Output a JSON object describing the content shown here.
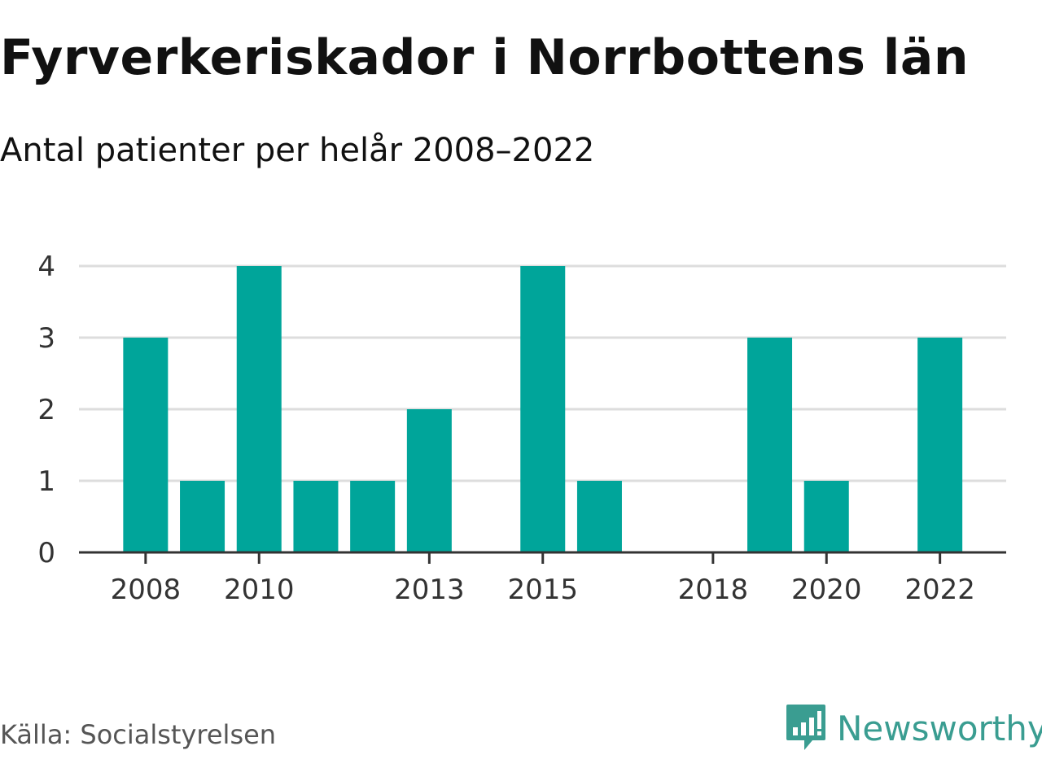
{
  "header": {
    "title": "Fyrverkeriskador i Norrbottens län",
    "subtitle": "Antal patienter per helår 2008–2022"
  },
  "footer": {
    "source": "Källa: Socialstyrelsen",
    "brand": "Newsworthy",
    "brand_icon": "bar-chart-speech-bubble-icon"
  },
  "colors": {
    "bar": "#00a59a",
    "grid": "#dddddd",
    "axis": "#333333",
    "brand": "#3a9d91"
  },
  "chart_data": {
    "type": "bar",
    "categories": [
      "2008",
      "2009",
      "2010",
      "2011",
      "2012",
      "2013",
      "2014",
      "2015",
      "2016",
      "2017",
      "2018",
      "2019",
      "2020",
      "2021",
      "2022"
    ],
    "values": [
      3,
      1,
      4,
      1,
      1,
      2,
      0,
      4,
      1,
      0,
      0,
      3,
      1,
      0,
      3
    ],
    "x_tick_labels": [
      "2008",
      "2010",
      "2013",
      "2015",
      "2018",
      "2020",
      "2022"
    ],
    "y_ticks": [
      0,
      1,
      2,
      3,
      4
    ],
    "ylim": [
      0,
      4
    ],
    "grid": true,
    "legend": "none"
  }
}
